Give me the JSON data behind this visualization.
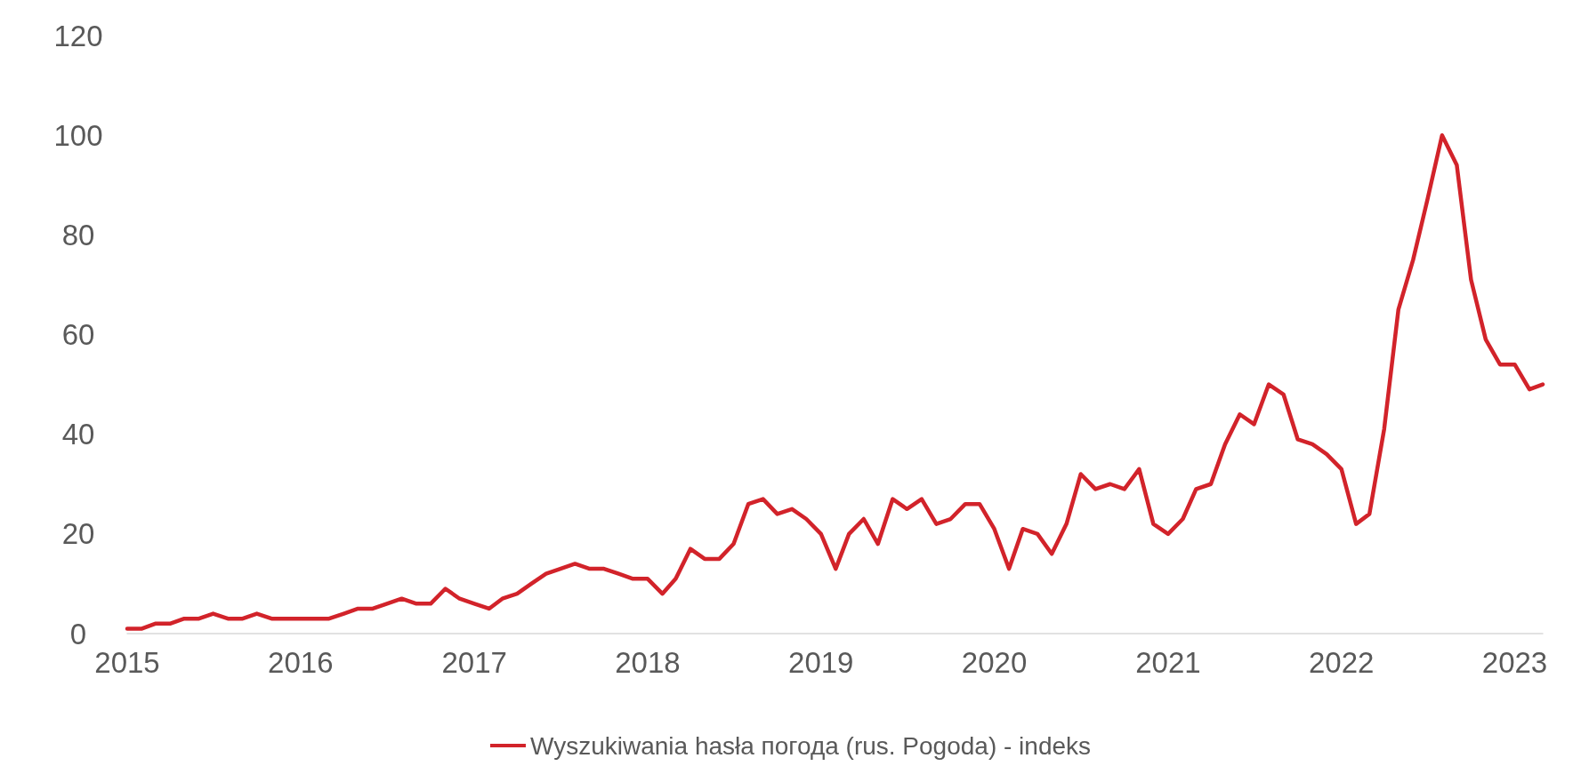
{
  "chart_data": {
    "type": "line",
    "legend": "bottom",
    "grid": false,
    "marker": "none",
    "line_style": "solid",
    "xlim": [
      "2015-01",
      "2023-03"
    ],
    "xticks": [
      "2015",
      "2016",
      "2017",
      "2018",
      "2019",
      "2020",
      "2021",
      "2022",
      "2023"
    ],
    "ylim": [
      0,
      120
    ],
    "yticks": [
      0,
      20,
      40,
      60,
      80,
      100,
      120
    ],
    "x": [
      "2015-01",
      "2015-02",
      "2015-03",
      "2015-04",
      "2015-05",
      "2015-06",
      "2015-07",
      "2015-08",
      "2015-09",
      "2015-10",
      "2015-11",
      "2015-12",
      "2016-01",
      "2016-02",
      "2016-03",
      "2016-04",
      "2016-05",
      "2016-06",
      "2016-07",
      "2016-08",
      "2016-09",
      "2016-10",
      "2016-11",
      "2016-12",
      "2017-01",
      "2017-02",
      "2017-03",
      "2017-04",
      "2017-05",
      "2017-06",
      "2017-07",
      "2017-08",
      "2017-09",
      "2017-10",
      "2017-11",
      "2017-12",
      "2018-01",
      "2018-02",
      "2018-03",
      "2018-04",
      "2018-05",
      "2018-06",
      "2018-07",
      "2018-08",
      "2018-09",
      "2018-10",
      "2018-11",
      "2018-12",
      "2019-01",
      "2019-02",
      "2019-03",
      "2019-04",
      "2019-05",
      "2019-06",
      "2019-07",
      "2019-08",
      "2019-09",
      "2019-10",
      "2019-11",
      "2019-12",
      "2020-01",
      "2020-02",
      "2020-03",
      "2020-04",
      "2020-05",
      "2020-06",
      "2020-07",
      "2020-08",
      "2020-09",
      "2020-10",
      "2020-11",
      "2020-12",
      "2021-01",
      "2021-02",
      "2021-03",
      "2021-04",
      "2021-05",
      "2021-06",
      "2021-07",
      "2021-08",
      "2021-09",
      "2021-10",
      "2021-11",
      "2021-12",
      "2022-01",
      "2022-02",
      "2022-03",
      "2022-04",
      "2022-05",
      "2022-06",
      "2022-07",
      "2022-08",
      "2022-09",
      "2022-10",
      "2022-11",
      "2022-12",
      "2023-01",
      "2023-02",
      "2023-03"
    ],
    "series": [
      {
        "name": "Wyszukiwania hasła погода (rus. Pogoda) - indeks",
        "color": "#d2232a",
        "values": [
          1,
          1,
          2,
          2,
          3,
          3,
          4,
          3,
          3,
          4,
          3,
          3,
          3,
          3,
          3,
          4,
          5,
          5,
          6,
          7,
          6,
          6,
          9,
          7,
          6,
          5,
          7,
          8,
          10,
          12,
          13,
          14,
          13,
          13,
          12,
          11,
          11,
          8,
          11,
          17,
          15,
          15,
          18,
          26,
          27,
          24,
          25,
          23,
          20,
          13,
          20,
          23,
          18,
          27,
          25,
          27,
          22,
          23,
          26,
          26,
          21,
          13,
          21,
          20,
          16,
          22,
          32,
          29,
          30,
          29,
          33,
          22,
          20,
          23,
          29,
          30,
          38,
          44,
          42,
          50,
          48,
          39,
          38,
          36,
          33,
          22,
          24,
          41,
          65,
          75,
          87,
          100,
          94,
          71,
          59,
          54,
          54,
          49,
          50
        ]
      }
    ]
  }
}
